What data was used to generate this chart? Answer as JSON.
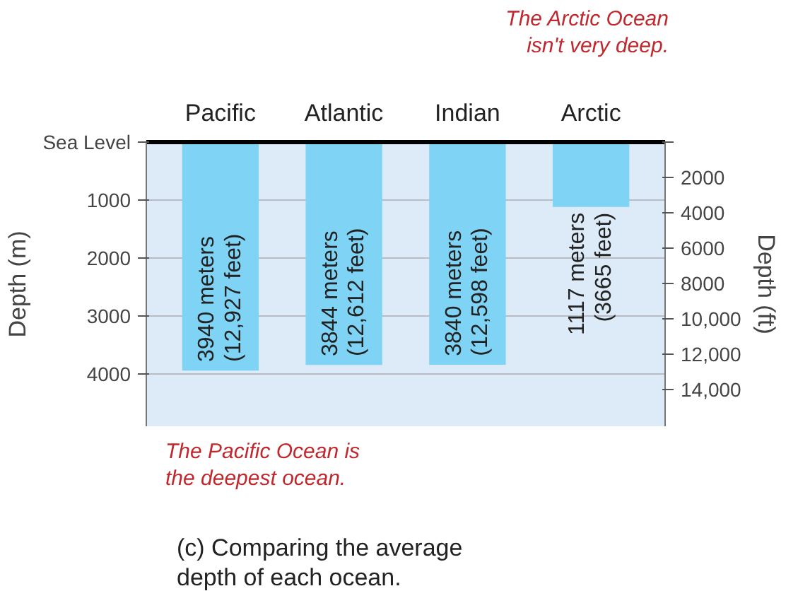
{
  "chart_data": {
    "type": "bar",
    "categories": [
      "Pacific",
      "Atlantic",
      "Indian",
      "Arctic"
    ],
    "values": [
      3940,
      3844,
      3840,
      1117
    ],
    "value_labels": [
      "3940 meters\n(12,927 feet)",
      "3844 meters\n(12,612 feet)",
      "3840 meters\n(12,598 feet)",
      "1117 meters\n(3665 feet)"
    ],
    "color": "#7fd3f4",
    "ylabel": "Depth (m)",
    "y2label": "Depth (ft)",
    "ylim": [
      4900,
      0
    ],
    "yticks": [
      {
        "value": 0,
        "label": "Sea Level"
      },
      1000,
      2000,
      3000,
      4000
    ],
    "y2lim": [
      16080,
      0
    ],
    "y2ticks": [
      {
        "value": 0,
        "label": null
      },
      2000,
      4000,
      6000,
      8000,
      {
        "value": 10000,
        "label": "10,000"
      },
      {
        "value": 12000,
        "label": "12,000"
      },
      {
        "value": 14000,
        "label": "14,000"
      }
    ],
    "grid": "y",
    "annotations": [
      "The Arctic Ocean\nisn't very deep.",
      "The Pacific Ocean is\nthe deepest ocean.",
      "(c) Comparing the average\ndepth of each ocean."
    ]
  }
}
